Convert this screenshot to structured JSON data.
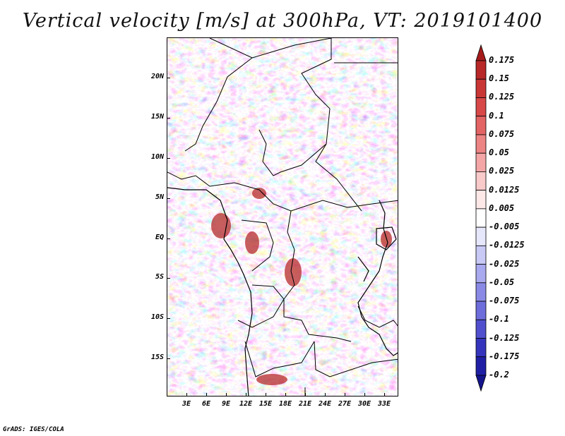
{
  "title": "Vertical velocity [m/s] at 300hPa, VT: 2019101400",
  "credit": "GrADS: IGES/COLA",
  "lat_labels": [
    "20N",
    "15N",
    "10N",
    "5N",
    "EQ",
    "5S",
    "10S",
    "15S"
  ],
  "lon_labels": [
    "3E",
    "6E",
    "9E",
    "12E",
    "15E",
    "18E",
    "21E",
    "24E",
    "27E",
    "30E",
    "33E"
  ],
  "colorbar": {
    "labels": [
      "0.175",
      "0.15",
      "0.125",
      "0.1",
      "0.075",
      "0.05",
      "0.025",
      "0.0125",
      "0.005",
      "-0.005",
      "-0.0125",
      "-0.025",
      "-0.05",
      "-0.075",
      "-0.1",
      "-0.125",
      "-0.175",
      "-0.2"
    ],
    "colors": [
      "#a51b1b",
      "#b82828",
      "#c93636",
      "#d84848",
      "#e36464",
      "#ec8484",
      "#f4a6a6",
      "#f9caca",
      "#fde8e8",
      "#ffffff",
      "#e7e7fc",
      "#c9c9f6",
      "#a9a9ef",
      "#8a8ae6",
      "#6d6ddc",
      "#5050cf",
      "#3434bd",
      "#1f1fa6",
      "#14148c"
    ]
  }
}
